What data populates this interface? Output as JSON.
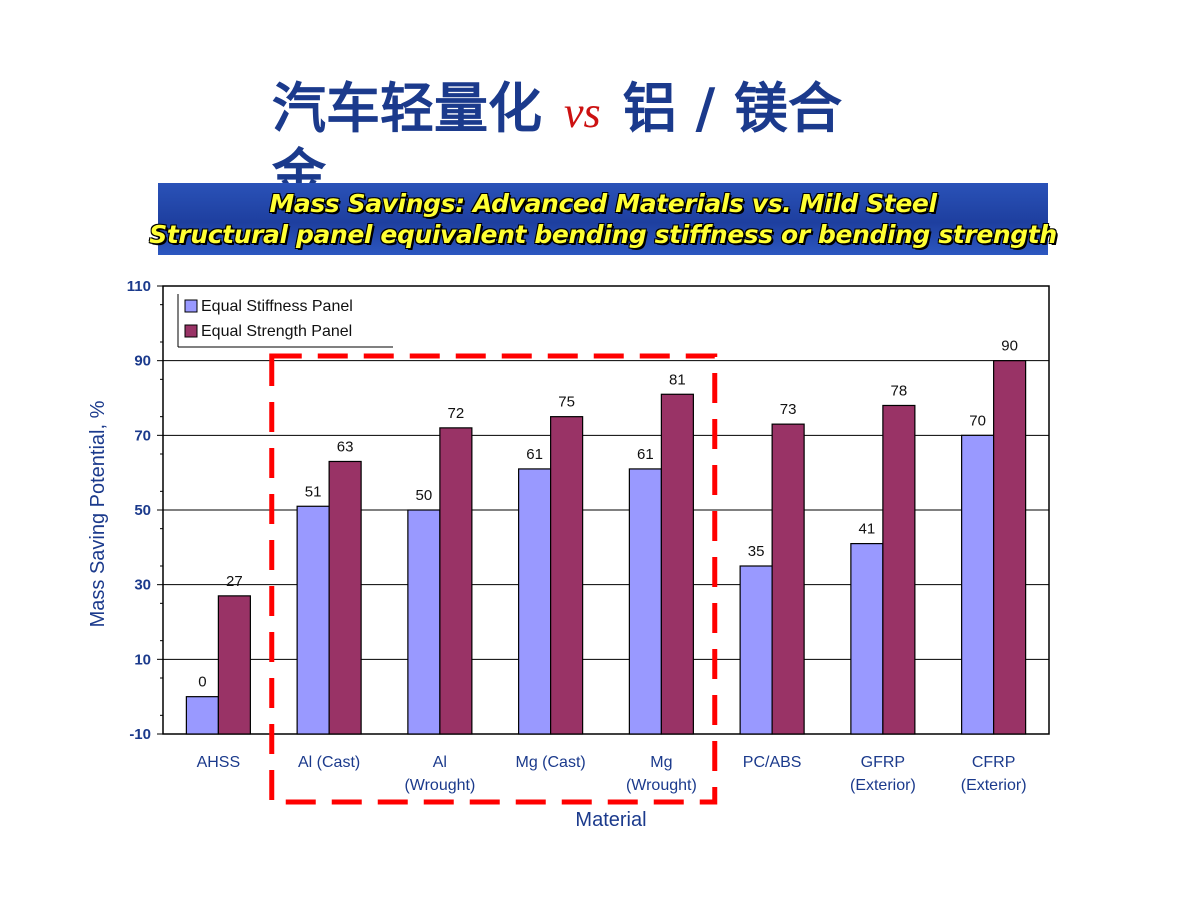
{
  "slide": {
    "title_part1": "汽车轻量化",
    "title_vs": "vs",
    "title_part2": "铝 / 镁合金"
  },
  "banner": {
    "line1": "Mass Savings: Advanced Materials vs. Mild Steel",
    "line2": "Structural panel equivalent bending stiffness or bending strength"
  },
  "colors": {
    "stiffness": "#9999ff",
    "strength": "#993366",
    "highlight": "#ff0000"
  },
  "chart_data": {
    "type": "bar",
    "categories": [
      [
        "AHSS"
      ],
      [
        "Al (Cast)"
      ],
      [
        "Al",
        "(Wrought)"
      ],
      [
        "Mg (Cast)"
      ],
      [
        "Mg",
        "(Wrought)"
      ],
      [
        "PC/ABS"
      ],
      [
        "GFRP",
        "(Exterior)"
      ],
      [
        "CFRP",
        "(Exterior)"
      ]
    ],
    "series": [
      {
        "name": "Equal Stiffness Panel",
        "values": [
          0,
          51,
          50,
          61,
          61,
          35,
          41,
          70
        ]
      },
      {
        "name": "Equal Strength Panel",
        "values": [
          27,
          63,
          72,
          75,
          81,
          73,
          78,
          90
        ]
      }
    ],
    "xlabel": "Material",
    "ylabel": "Mass Saving Potential, %",
    "ylim": [
      -10,
      110
    ],
    "yticks": [
      -10,
      10,
      30,
      50,
      70,
      90,
      110
    ],
    "grid": true,
    "legend": "top-left",
    "highlight_categories": [
      1,
      4
    ]
  }
}
